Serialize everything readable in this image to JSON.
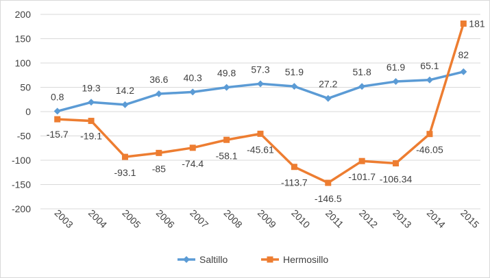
{
  "chart_data": {
    "type": "line",
    "categories": [
      "2003",
      "2004",
      "2005",
      "2006",
      "2007",
      "2008",
      "2009",
      "2010",
      "2011",
      "2012",
      "2013",
      "2014",
      "2015"
    ],
    "series": [
      {
        "name": "Saltillo",
        "color": "#5b9bd5",
        "marker": "diamond",
        "values": [
          0.8,
          19.3,
          14.2,
          36.6,
          40.3,
          49.8,
          57.3,
          51.9,
          27.2,
          51.8,
          61.9,
          65.1,
          82
        ],
        "labels": [
          "0.8",
          "19.3",
          "14.2",
          "36.6",
          "40.3",
          "49.8",
          "57.3",
          "51.9",
          "27.2",
          "51.8",
          "61.9",
          "65.1",
          "82"
        ]
      },
      {
        "name": "Hermosillo",
        "color": "#ed7d31",
        "marker": "square",
        "values": [
          -15.7,
          -19.1,
          -93.1,
          -85,
          -74.4,
          -58.1,
          -45.61,
          -113.7,
          -146.5,
          -101.7,
          -106.34,
          -46.05,
          181
        ],
        "labels": [
          "-15.7",
          "-19.1",
          "-93.1",
          "-85",
          "-74.4",
          "-58.1",
          "-45.61",
          "-113.7",
          "-146.5",
          "-101.7",
          "-106.34",
          "-46.05",
          "181"
        ]
      }
    ],
    "yticks": [
      "200",
      "150",
      "100",
      "50",
      "0",
      "-50",
      "-100",
      "-150",
      "-200"
    ],
    "ylim": [
      -200,
      200
    ],
    "grid": true,
    "legend_position": "bottom"
  }
}
